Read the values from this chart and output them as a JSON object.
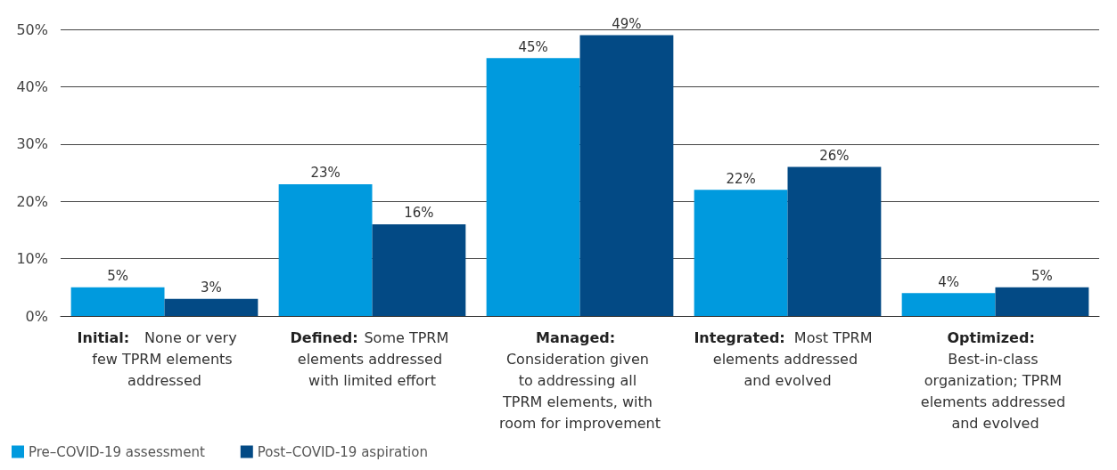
{
  "chart_data": {
    "type": "bar",
    "categories": [
      "Initial: None or very few TPRM elements addressed",
      "Defined: Some TPRM elements addressed with limited effort",
      "Managed: Consideration given to addressing all TPRM elements, with room for improvement",
      "Integrated: Most TPRM elements addressed and evolved",
      "Optimized: Best-in-class organization; TPRM elements addressed and evolved"
    ],
    "series": [
      {
        "name": "Pre–COVID-19 assessment",
        "color": "#009ade",
        "values": [
          5,
          23,
          45,
          22,
          4
        ],
        "value_labels": [
          "5%",
          "23%",
          "45%",
          "22%",
          "4%"
        ]
      },
      {
        "name": "Post–COVID-19 aspiration",
        "color": "#034a85",
        "values": [
          3,
          16,
          49,
          26,
          5
        ],
        "value_labels": [
          "3%",
          "16%",
          "49%",
          "26%",
          "5%"
        ]
      }
    ],
    "ylim": [
      0,
      50
    ],
    "yticks": [
      {
        "value": 0,
        "label": "0%"
      },
      {
        "value": 10,
        "label": "10%"
      },
      {
        "value": 20,
        "label": "20%"
      },
      {
        "value": 30,
        "label": "30%"
      },
      {
        "value": 40,
        "label": "40%"
      },
      {
        "value": 50,
        "label": "50%"
      }
    ],
    "grid": "y",
    "legend": "bottom left"
  }
}
